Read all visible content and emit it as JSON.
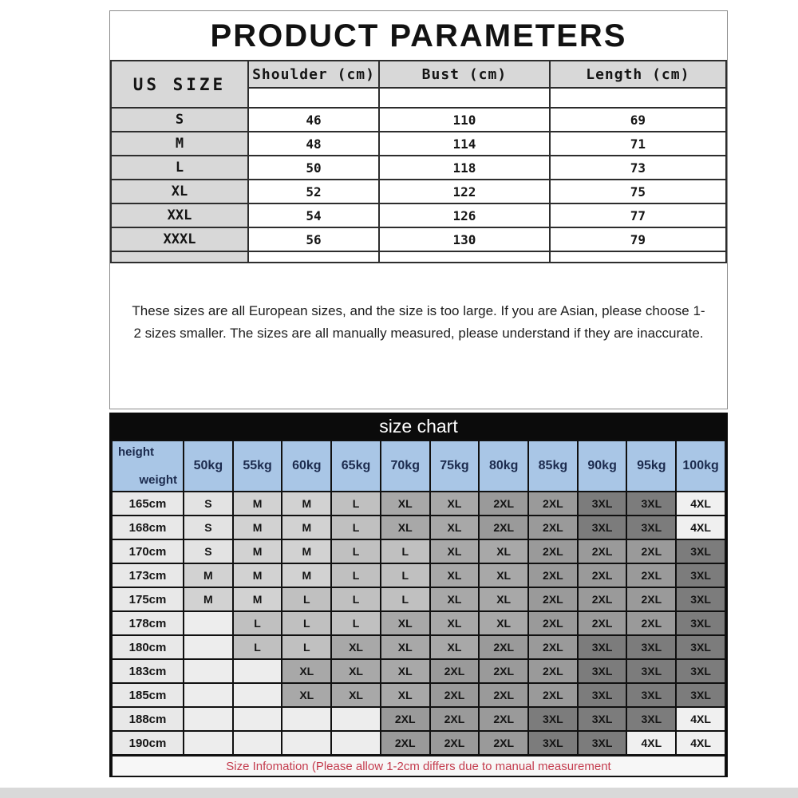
{
  "header": {
    "title": "PRODUCT PARAMETERS"
  },
  "measurements": {
    "corner_label": "US SIZE",
    "columns": [
      "Shoulder (cm)",
      "Bust (cm)",
      "Length (cm)"
    ],
    "column_widths": [
      "21.3%",
      "27.7%",
      "28.7%"
    ],
    "rows": [
      {
        "size": "S",
        "values": [
          "46",
          "110",
          "69"
        ]
      },
      {
        "size": "M",
        "values": [
          "48",
          "114",
          "71"
        ]
      },
      {
        "size": "L",
        "values": [
          "50",
          "118",
          "73"
        ]
      },
      {
        "size": "XL",
        "values": [
          "52",
          "122",
          "75"
        ]
      },
      {
        "size": "XXL",
        "values": [
          "54",
          "126",
          "77"
        ]
      },
      {
        "size": "XXXL",
        "values": [
          "56",
          "130",
          "79"
        ]
      }
    ]
  },
  "note": {
    "text": "These sizes are all European sizes, and the size is too large. If you are Asian, please choose 1-2 sizes smaller. The sizes are all manually measured, please understand if they are inaccurate."
  },
  "size_chart": {
    "title": "size chart",
    "corner": {
      "top_label": "height",
      "bottom_label": "weight"
    },
    "weight_columns": [
      "50kg",
      "55kg",
      "60kg",
      "65kg",
      "70kg",
      "75kg",
      "80kg",
      "85kg",
      "90kg",
      "95kg",
      "100kg"
    ],
    "rows": [
      {
        "height": "165cm",
        "cells": [
          "S",
          "M",
          "M",
          "L",
          "XL",
          "XL",
          "2XL",
          "2XL",
          "3XL",
          "3XL",
          "4XL"
        ]
      },
      {
        "height": "168cm",
        "cells": [
          "S",
          "M",
          "M",
          "L",
          "XL",
          "XL",
          "2XL",
          "2XL",
          "3XL",
          "3XL",
          "4XL"
        ]
      },
      {
        "height": "170cm",
        "cells": [
          "S",
          "M",
          "M",
          "L",
          "L",
          "XL",
          "XL",
          "2XL",
          "2XL",
          "2XL",
          "3XL"
        ]
      },
      {
        "height": "173cm",
        "cells": [
          "M",
          "M",
          "M",
          "L",
          "L",
          "XL",
          "XL",
          "2XL",
          "2XL",
          "2XL",
          "3XL"
        ]
      },
      {
        "height": "175cm",
        "cells": [
          "M",
          "M",
          "L",
          "L",
          "L",
          "XL",
          "XL",
          "2XL",
          "2XL",
          "2XL",
          "3XL"
        ]
      },
      {
        "height": "178cm",
        "cells": [
          "",
          "L",
          "L",
          "L",
          "XL",
          "XL",
          "XL",
          "2XL",
          "2XL",
          "2XL",
          "3XL"
        ]
      },
      {
        "height": "180cm",
        "cells": [
          "",
          "L",
          "L",
          "XL",
          "XL",
          "XL",
          "2XL",
          "2XL",
          "3XL",
          "3XL",
          "3XL"
        ]
      },
      {
        "height": "183cm",
        "cells": [
          "",
          "",
          "XL",
          "XL",
          "XL",
          "2XL",
          "2XL",
          "2XL",
          "3XL",
          "3XL",
          "3XL"
        ]
      },
      {
        "height": "185cm",
        "cells": [
          "",
          "",
          "XL",
          "XL",
          "XL",
          "2XL",
          "2XL",
          "2XL",
          "3XL",
          "3XL",
          "3XL"
        ]
      },
      {
        "height": "188cm",
        "cells": [
          "",
          "",
          "",
          "",
          "2XL",
          "2XL",
          "2XL",
          "3XL",
          "3XL",
          "3XL",
          "4XL"
        ]
      },
      {
        "height": "190cm",
        "cells": [
          "",
          "",
          "",
          "",
          "2XL",
          "2XL",
          "2XL",
          "3XL",
          "3XL",
          "4XL",
          "4XL"
        ]
      }
    ],
    "footnote": "Size Infomation  (Please allow 1-2cm differs due to manual measurement",
    "colors": {
      "header_bg": "#a9c6e6",
      "header_text": "#1c2b4e",
      "bar_bg": "#0b0b0b",
      "bar_text": "#ffffff",
      "label_cell_bg": "#e8e8e8",
      "footnote_text": "#c43c4e",
      "cell_shades": {
        "empty": "#ededed",
        "S": "#e3e3e3",
        "M": "#d2d2d2",
        "L": "#c0c0c0",
        "XL": "#a8a8a8",
        "2XL": "#9a9a9a",
        "3XL": "#7c7c7c",
        "4XL": "#f0f0f0"
      }
    }
  }
}
